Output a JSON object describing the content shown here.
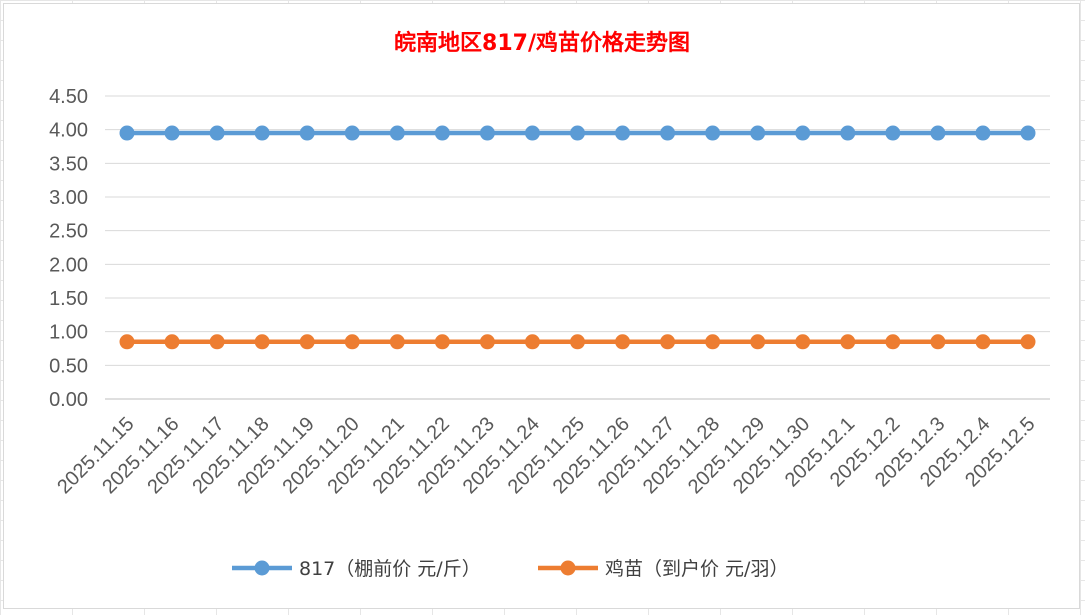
{
  "chart_data": {
    "type": "line",
    "title": "皖南地区817/鸡苗价格走势图",
    "title_color": "#ff0000",
    "xlabel": "",
    "ylabel": "",
    "categories": [
      "2025.11.15",
      "2025.11.16",
      "2025.11.17",
      "2025.11.18",
      "2025.11.19",
      "2025.11.20",
      "2025.11.21",
      "2025.11.22",
      "2025.11.23",
      "2025.11.24",
      "2025.11.25",
      "2025.11.26",
      "2025.11.27",
      "2025.11.28",
      "2025.11.29",
      "2025.11.30",
      "2025.12.1",
      "2025.12.2",
      "2025.12.3",
      "2025.12.4",
      "2025.12.5"
    ],
    "ylim": [
      0,
      4.5
    ],
    "yticks": [
      "0.00",
      "0.50",
      "1.00",
      "1.50",
      "2.00",
      "2.50",
      "3.00",
      "3.50",
      "4.00",
      "4.50"
    ],
    "grid": true,
    "legend_position": "bottom",
    "series": [
      {
        "name": "817（棚前价 元/斤）",
        "color": "#5b9bd5",
        "values": [
          3.95,
          3.95,
          3.95,
          3.95,
          3.95,
          3.95,
          3.95,
          3.95,
          3.95,
          3.95,
          3.95,
          3.95,
          3.95,
          3.95,
          3.95,
          3.95,
          3.95,
          3.95,
          3.95,
          3.95,
          3.95
        ]
      },
      {
        "name": "鸡苗（到户价 元/羽）",
        "color": "#ed7d31",
        "values": [
          0.85,
          0.85,
          0.85,
          0.85,
          0.85,
          0.85,
          0.85,
          0.85,
          0.85,
          0.85,
          0.85,
          0.85,
          0.85,
          0.85,
          0.85,
          0.85,
          0.85,
          0.85,
          0.85,
          0.85,
          0.85
        ]
      }
    ]
  }
}
